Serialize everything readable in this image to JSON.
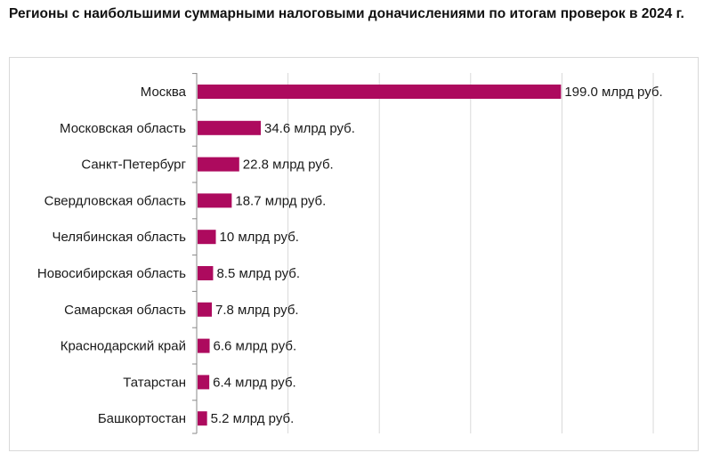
{
  "title": "Регионы с наибольшими суммарными налоговыми доначислениями по итогам проверок в 2024 г.",
  "colors": {
    "bar": "#AD0A5E",
    "grid": "#d9d9d9"
  },
  "chart_data": {
    "type": "bar",
    "orientation": "horizontal",
    "title": "Регионы с наибольшими суммарными налоговыми доначислениями по итогам проверок в 2024 г.",
    "xlabel": "",
    "ylabel": "",
    "xlim": [
      0,
      250
    ],
    "grid": true,
    "categories": [
      "Москва",
      "Московская область",
      "Санкт-Петербург",
      "Свердловская область",
      "Челябинская область",
      "Новосибирская область",
      "Самарская область",
      "Краснодарский край",
      "Татарстан",
      "Башкортостан"
    ],
    "values": [
      199.0,
      34.6,
      22.8,
      18.7,
      10,
      8.5,
      7.8,
      6.6,
      6.4,
      5.2
    ],
    "labels": [
      "199.0 млрд руб.",
      "34.6 млрд руб.",
      "22.8 млрд руб.",
      "18.7 млрд руб.",
      "10 млрд руб.",
      "8.5 млрд руб.",
      "7.8 млрд руб.",
      "6.6 млрд руб.",
      "6.4 млрд руб.",
      "5.2 млрд руб."
    ]
  }
}
